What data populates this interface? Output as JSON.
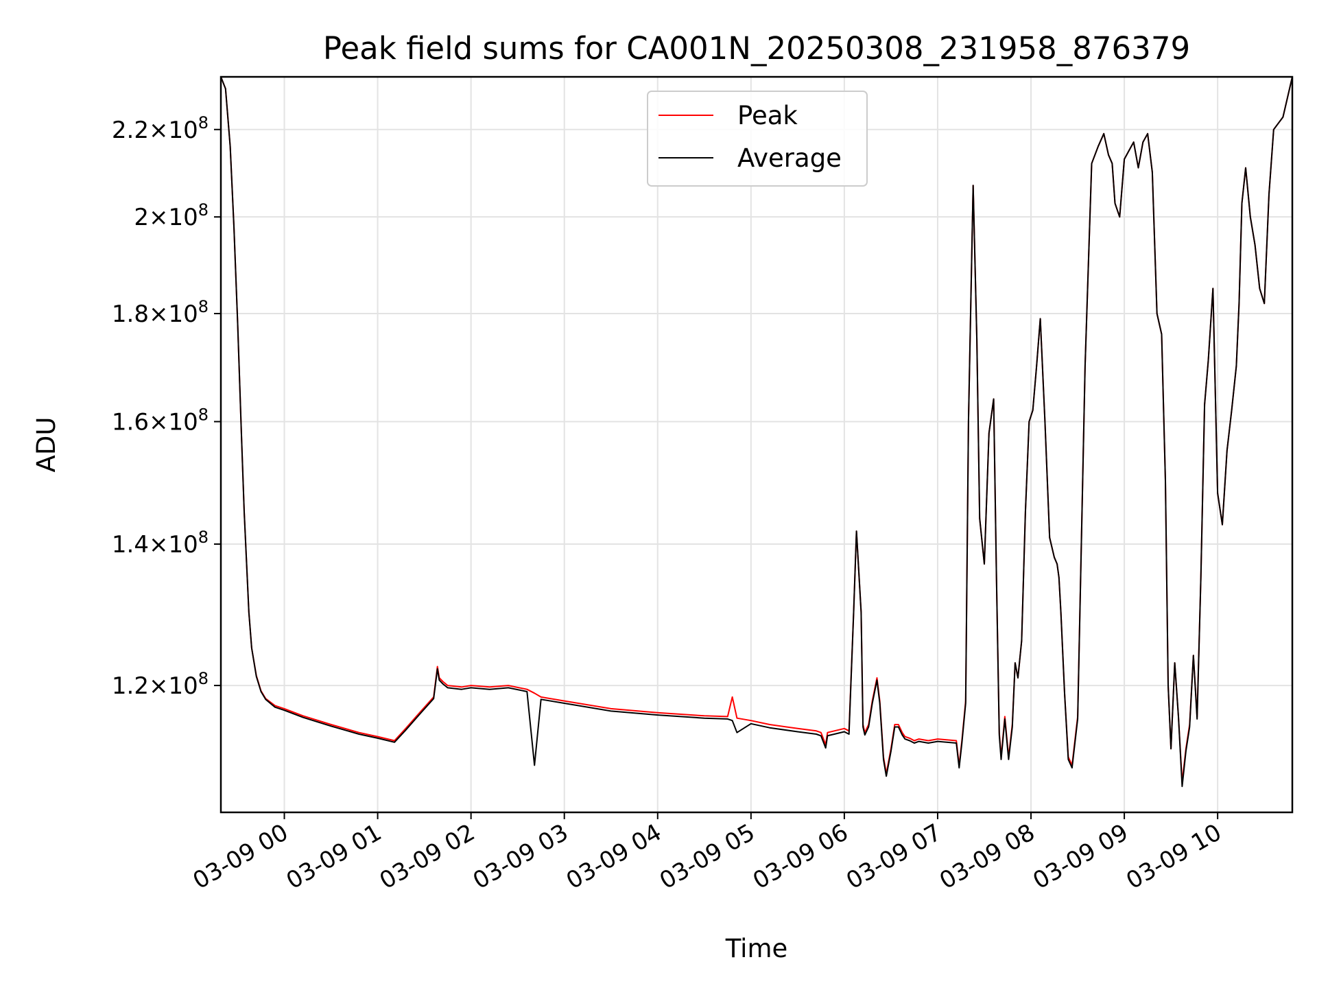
{
  "chart_data": {
    "type": "line",
    "title": "Peak field sums for CA001N_20250308_231958_876379",
    "xlabel": "Time",
    "ylabel": "ADU",
    "x_unit": "hours",
    "xlim": [
      -0.68,
      10.8
    ],
    "ylim": [
      104500000.0,
      233000000.0
    ],
    "yscale": "log",
    "grid": true,
    "legend_position": "upper center",
    "x_ticks": [
      {
        "value": 0,
        "label": "03-09 00"
      },
      {
        "value": 1,
        "label": "03-09 01"
      },
      {
        "value": 2,
        "label": "03-09 02"
      },
      {
        "value": 3,
        "label": "03-09 03"
      },
      {
        "value": 4,
        "label": "03-09 04"
      },
      {
        "value": 5,
        "label": "03-09 05"
      },
      {
        "value": 6,
        "label": "03-09 06"
      },
      {
        "value": 7,
        "label": "03-09 07"
      },
      {
        "value": 8,
        "label": "03-09 08"
      },
      {
        "value": 9,
        "label": "03-09 09"
      },
      {
        "value": 10,
        "label": "03-09 10"
      }
    ],
    "y_ticks": [
      {
        "value": 120000000,
        "mantissa": "1.2",
        "exponent": "8"
      },
      {
        "value": 140000000,
        "mantissa": "1.4",
        "exponent": "8"
      },
      {
        "value": 160000000,
        "mantissa": "1.6",
        "exponent": "8"
      },
      {
        "value": 180000000,
        "mantissa": "1.8",
        "exponent": "8"
      },
      {
        "value": 200000000,
        "mantissa": "2",
        "exponent": "8"
      },
      {
        "value": 220000000,
        "mantissa": "2.2",
        "exponent": "8"
      }
    ],
    "series": [
      {
        "name": "Peak",
        "color": "#ff0000",
        "x": [
          -0.68,
          -0.63,
          -0.58,
          -0.54,
          -0.5,
          -0.46,
          -0.43,
          -0.38,
          -0.35,
          -0.3,
          -0.25,
          -0.2,
          -0.1,
          0,
          0.2,
          0.5,
          0.8,
          1.0,
          1.18,
          1.3,
          1.45,
          1.6,
          1.64,
          1.66,
          1.7,
          1.75,
          1.9,
          2.0,
          2.2,
          2.4,
          2.6,
          2.68,
          2.75,
          3.0,
          3.5,
          4.0,
          4.5,
          4.75,
          4.8,
          4.85,
          5.0,
          5.2,
          5.5,
          5.7,
          5.75,
          5.8,
          5.82,
          6.0,
          6.05,
          6.1,
          6.13,
          6.18,
          6.2,
          6.22,
          6.26,
          6.3,
          6.35,
          6.38,
          6.42,
          6.45,
          6.5,
          6.54,
          6.58,
          6.62,
          6.65,
          6.7,
          6.75,
          6.8,
          6.9,
          7.0,
          7.2,
          7.23,
          7.26,
          7.3,
          7.33,
          7.38,
          7.42,
          7.45,
          7.5,
          7.55,
          7.6,
          7.63,
          7.66,
          7.68,
          7.72,
          7.76,
          7.8,
          7.83,
          7.86,
          7.9,
          7.94,
          7.98,
          8.02,
          8.06,
          8.1,
          8.15,
          8.2,
          8.25,
          8.28,
          8.3,
          8.32,
          8.36,
          8.4,
          8.44,
          8.5,
          8.58,
          8.65,
          8.72,
          8.78,
          8.83,
          8.87,
          8.9,
          8.95,
          9.0,
          9.05,
          9.1,
          9.15,
          9.2,
          9.25,
          9.3,
          9.35,
          9.4,
          9.44,
          9.47,
          9.5,
          9.54,
          9.58,
          9.62,
          9.66,
          9.7,
          9.74,
          9.78,
          9.82,
          9.86,
          9.9,
          9.95,
          10.0,
          10.05,
          10.1,
          10.15,
          10.2,
          10.23,
          10.26,
          10.3,
          10.35,
          10.4,
          10.45,
          10.5,
          10.55,
          10.6,
          10.7,
          10.8
        ],
        "y": [
          233000000.0,
          230000000.0,
          216000000.0,
          198000000.0,
          178000000.0,
          158000000.0,
          145000000.0,
          130000000.0,
          125000000.0,
          121300000.0,
          119300000.0,
          118300000.0,
          117400000.0,
          117000000.0,
          116100000.0,
          115000000.0,
          114000000.0,
          113500000.0,
          113000000.0,
          114500000.0,
          116500000.0,
          118500000.0,
          122500000.0,
          121000000.0,
          120500000.0,
          120000000.0,
          119800000.0,
          120000000.0,
          119800000.0,
          120000000.0,
          119500000.0,
          119000000.0,
          118500000.0,
          118000000.0,
          117000000.0,
          116500000.0,
          116100000.0,
          116000000.0,
          118500000.0,
          115800000.0,
          115500000.0,
          115000000.0,
          114500000.0,
          114200000.0,
          114000000.0,
          112500000.0,
          114000000.0,
          114500000.0,
          114200000.0,
          130000000.0,
          142000000.0,
          130000000.0,
          115000000.0,
          114000000.0,
          115000000.0,
          118000000.0,
          121000000.0,
          118000000.0,
          111000000.0,
          109000000.0,
          112000000.0,
          115000000.0,
          115000000.0,
          114000000.0,
          113500000.0,
          113300000.0,
          113000000.0,
          113200000.0,
          113000000.0,
          113200000.0,
          113000000.0,
          110000000.0,
          113000000.0,
          118000000.0,
          160000000.0,
          207000000.0,
          175000000.0,
          144000000.0,
          137000000.0,
          158000000.0,
          164000000.0,
          135000000.0,
          114000000.0,
          111000000.0,
          116000000.0,
          111000000.0,
          115000000.0,
          123000000.0,
          121000000.0,
          126000000.0,
          145000000.0,
          160000000.0,
          162000000.0,
          170000000.0,
          179000000.0,
          160000000.0,
          141000000.0,
          138000000.0,
          137000000.0,
          135000000.0,
          130000000.0,
          119000000.0,
          111000000.0,
          110000000.0,
          116000000.0,
          170000000.0,
          212000000.0,
          216000000.0,
          219000000.0,
          214000000.0,
          212000000.0,
          203000000.0,
          200000000.0,
          213000000.0,
          215000000.0,
          217000000.0,
          211000000.0,
          217000000.0,
          219000000.0,
          210000000.0,
          180000000.0,
          176000000.0,
          150000000.0,
          120000000.0,
          112000000.0,
          123000000.0,
          116000000.0,
          108000000.0,
          112000000.0,
          115000000.0,
          124000000.0,
          116000000.0,
          135000000.0,
          163000000.0,
          171000000.0,
          185000000.0,
          148000000.0,
          143000000.0,
          155000000.0,
          162000000.0,
          170000000.0,
          182000000.0,
          203000000.0,
          211000000.0,
          200000000.0,
          194000000.0,
          185000000.0,
          182000000.0,
          205000000.0,
          220000000.0,
          223000000.0,
          233000000.0
        ]
      },
      {
        "name": "Average",
        "color": "#000000",
        "x": [
          -0.68,
          -0.63,
          -0.58,
          -0.54,
          -0.5,
          -0.46,
          -0.43,
          -0.38,
          -0.35,
          -0.3,
          -0.25,
          -0.2,
          -0.1,
          0,
          0.2,
          0.5,
          0.8,
          1.0,
          1.18,
          1.3,
          1.45,
          1.6,
          1.64,
          1.66,
          1.7,
          1.75,
          1.9,
          2.0,
          2.2,
          2.4,
          2.6,
          2.68,
          2.75,
          3.0,
          3.5,
          4.0,
          4.5,
          4.75,
          4.8,
          4.85,
          5.0,
          5.2,
          5.5,
          5.7,
          5.75,
          5.8,
          5.82,
          6.0,
          6.05,
          6.1,
          6.13,
          6.18,
          6.2,
          6.22,
          6.26,
          6.3,
          6.35,
          6.38,
          6.42,
          6.45,
          6.5,
          6.54,
          6.58,
          6.62,
          6.65,
          6.7,
          6.75,
          6.8,
          6.9,
          7.0,
          7.2,
          7.23,
          7.26,
          7.3,
          7.33,
          7.38,
          7.42,
          7.45,
          7.5,
          7.55,
          7.6,
          7.63,
          7.66,
          7.68,
          7.72,
          7.76,
          7.8,
          7.83,
          7.86,
          7.9,
          7.94,
          7.98,
          8.02,
          8.06,
          8.1,
          8.15,
          8.2,
          8.25,
          8.28,
          8.3,
          8.32,
          8.36,
          8.4,
          8.44,
          8.5,
          8.58,
          8.65,
          8.72,
          8.78,
          8.83,
          8.87,
          8.9,
          8.95,
          9.0,
          9.05,
          9.1,
          9.15,
          9.2,
          9.25,
          9.3,
          9.35,
          9.4,
          9.44,
          9.47,
          9.5,
          9.54,
          9.58,
          9.62,
          9.66,
          9.7,
          9.74,
          9.78,
          9.82,
          9.86,
          9.9,
          9.95,
          10.0,
          10.05,
          10.1,
          10.15,
          10.2,
          10.23,
          10.26,
          10.3,
          10.35,
          10.4,
          10.45,
          10.5,
          10.55,
          10.6,
          10.7,
          10.8
        ],
        "y": [
          233000000.0,
          230000000.0,
          216000000.0,
          198000000.0,
          178000000.0,
          158000000.0,
          145000000.0,
          130000000.0,
          125000000.0,
          121200000.0,
          119200000.0,
          118200000.0,
          117200000.0,
          116800000.0,
          115900000.0,
          114800000.0,
          113800000.0,
          113300000.0,
          112800000.0,
          114300000.0,
          116300000.0,
          118300000.0,
          122200000.0,
          120700000.0,
          120200000.0,
          119700000.0,
          119500000.0,
          119700000.0,
          119500000.0,
          119700000.0,
          119200000.0,
          110000000.0,
          118200000.0,
          117700000.0,
          116700000.0,
          116200000.0,
          115800000.0,
          115700000.0,
          115500000.0,
          114000000.0,
          115100000.0,
          114600000.0,
          114100000.0,
          113800000.0,
          113600000.0,
          112100000.0,
          113600000.0,
          114100000.0,
          113800000.0,
          130000000.0,
          142000000.0,
          130000000.0,
          114700000.0,
          113700000.0,
          114700000.0,
          117700000.0,
          120700000.0,
          117700000.0,
          110700000.0,
          108700000.0,
          111700000.0,
          114700000.0,
          114700000.0,
          113700000.0,
          113200000.0,
          113000000.0,
          112700000.0,
          112900000.0,
          112700000.0,
          112900000.0,
          112700000.0,
          109700000.0,
          112700000.0,
          117700000.0,
          160000000.0,
          207000000.0,
          175000000.0,
          144000000.0,
          137000000.0,
          158000000.0,
          164000000.0,
          135000000.0,
          113700000.0,
          110700000.0,
          115700000.0,
          110700000.0,
          114700000.0,
          123000000.0,
          121000000.0,
          126000000.0,
          145000000.0,
          160000000.0,
          162000000.0,
          170000000.0,
          179000000.0,
          160000000.0,
          141000000.0,
          138000000.0,
          137000000.0,
          135000000.0,
          130000000.0,
          119000000.0,
          110700000.0,
          109700000.0,
          115700000.0,
          170000000.0,
          212000000.0,
          216000000.0,
          219000000.0,
          214000000.0,
          212000000.0,
          203000000.0,
          200000000.0,
          213000000.0,
          215000000.0,
          217000000.0,
          211000000.0,
          217000000.0,
          219000000.0,
          210000000.0,
          180000000.0,
          176000000.0,
          150000000.0,
          120000000.0,
          112000000.0,
          123000000.0,
          116000000.0,
          107500000.0,
          111700000.0,
          114700000.0,
          124000000.0,
          115700000.0,
          135000000.0,
          163000000.0,
          171000000.0,
          185000000.0,
          148000000.0,
          143000000.0,
          155000000.0,
          162000000.0,
          170000000.0,
          182000000.0,
          203000000.0,
          211000000.0,
          200000000.0,
          194000000.0,
          185000000.0,
          182000000.0,
          205000000.0,
          220000000.0,
          223000000.0,
          233000000.0
        ]
      }
    ]
  }
}
